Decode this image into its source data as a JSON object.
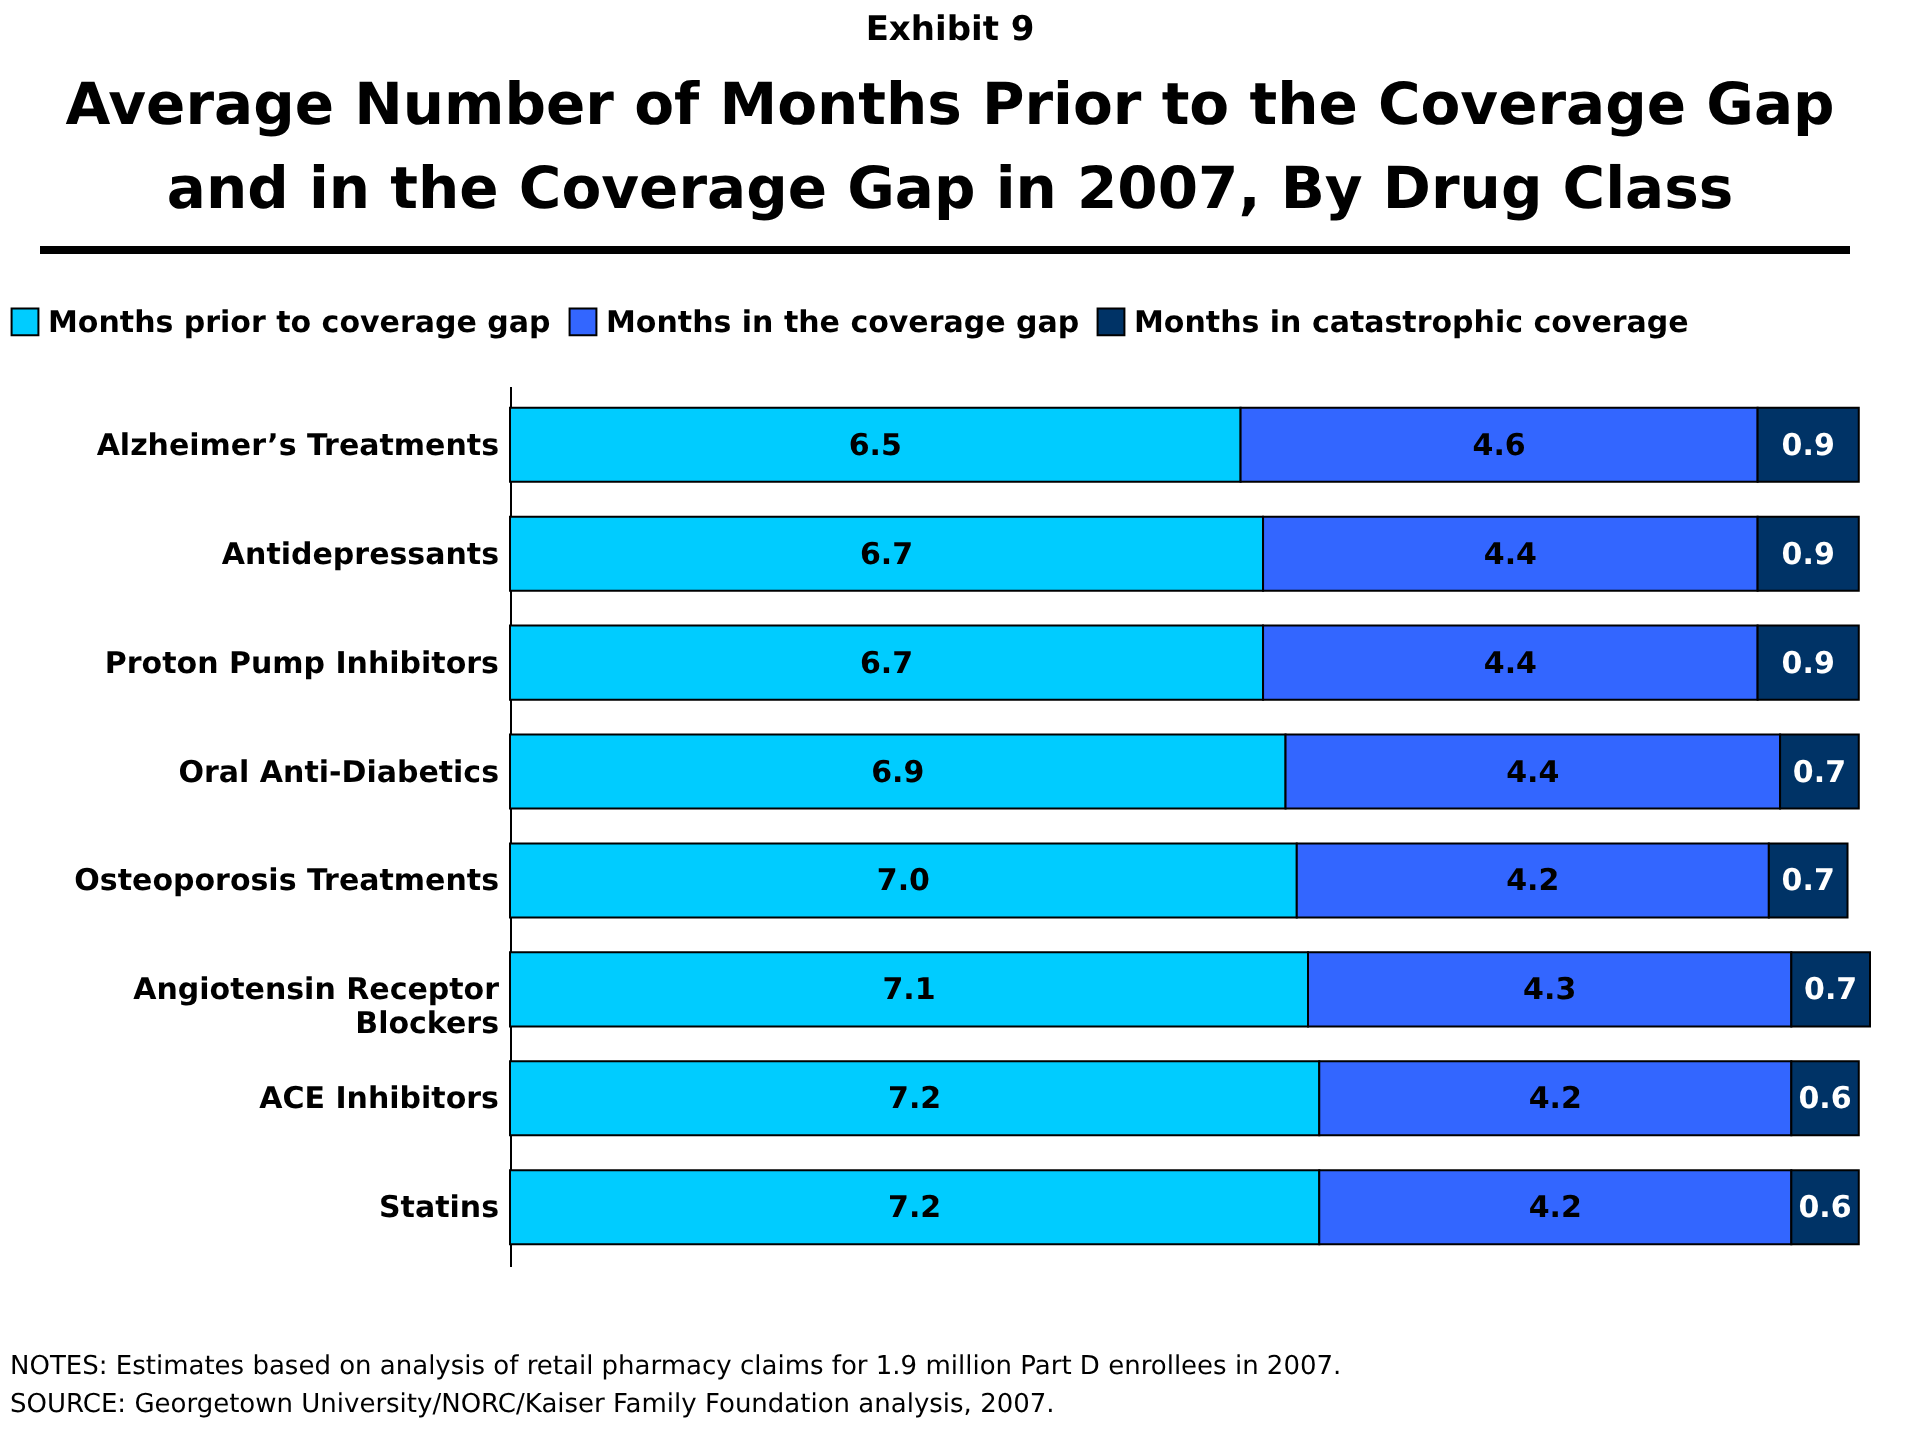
{
  "chart_data": {
    "type": "bar",
    "orientation": "horizontal",
    "stacked": true,
    "legend": "top",
    "subtitle": "Exhibit 9",
    "title": "Average Number of Months Prior to the Coverage Gap\nand in the Coverage Gap in 2007, By Drug Class",
    "categories": [
      "Alzheimer’s Treatments",
      "Antidepressants",
      "Proton Pump Inhibitors",
      "Oral Anti-Diabetics",
      "Osteoporosis Treatments",
      "Angiotensin Receptor\nBlockers",
      "ACE Inhibitors",
      "Statins"
    ],
    "series": [
      {
        "name": "Months prior to coverage gap",
        "color": "#00ccff",
        "values": [
          6.5,
          6.7,
          6.7,
          6.9,
          7.0,
          7.1,
          7.2,
          7.2
        ],
        "value_labels": [
          "6.5",
          "6.7",
          "6.7",
          "6.9",
          "7.0",
          "7.1",
          "7.2",
          "7.2"
        ]
      },
      {
        "name": "Months in the coverage gap",
        "color": "#3366ff",
        "values": [
          4.6,
          4.4,
          4.4,
          4.4,
          4.2,
          4.3,
          4.2,
          4.2
        ],
        "value_labels": [
          "4.6",
          "4.4",
          "4.4",
          "4.4",
          "4.2",
          "4.3",
          "4.2",
          "4.2"
        ]
      },
      {
        "name": "Months in catastrophic coverage",
        "color": "#003366",
        "values": [
          0.9,
          0.9,
          0.9,
          0.7,
          0.7,
          0.7,
          0.6,
          0.6
        ],
        "value_labels": [
          "0.9",
          "0.9",
          "0.9",
          "0.7",
          "0.7",
          "0.7",
          "0.6",
          "0.6"
        ]
      }
    ],
    "annotations": [
      "NOTES: Estimates based on analysis of retail pharmacy claims for 1.9 million Part D enrollees in 2007.",
      "SOURCE: Georgetown University/NORC/Kaiser Family Foundation analysis, 2007."
    ]
  }
}
